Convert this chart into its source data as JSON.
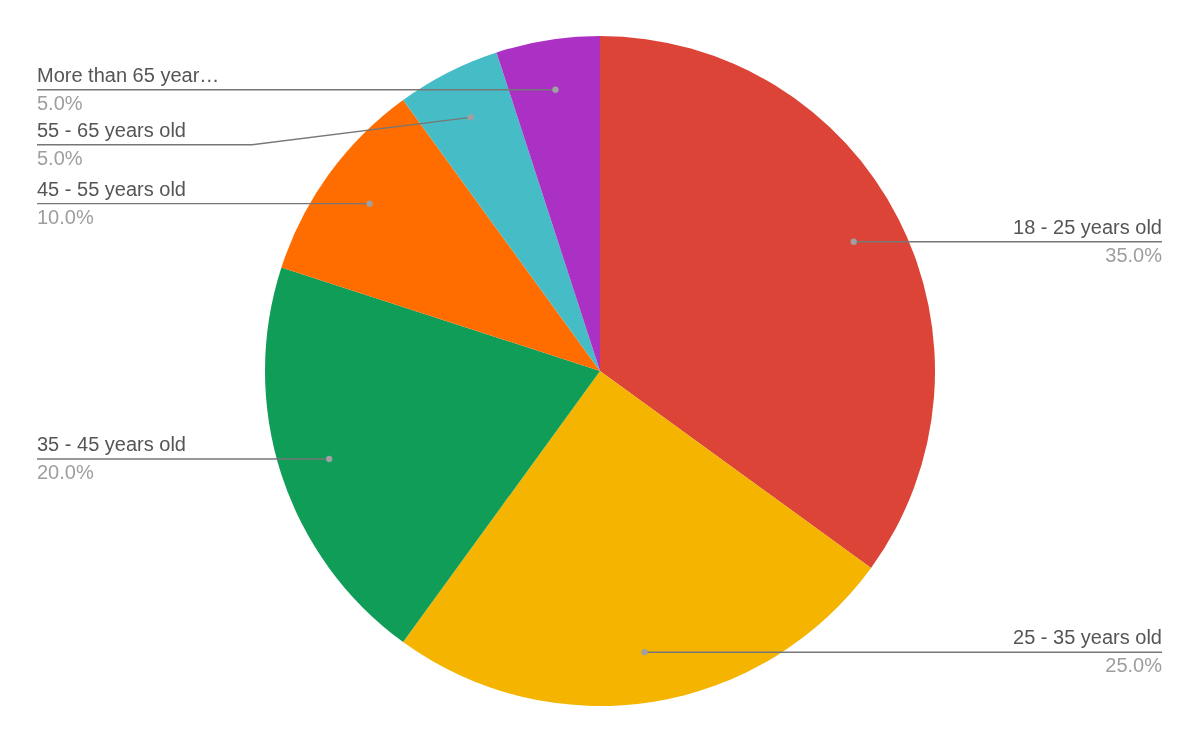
{
  "chart_data": {
    "type": "pie",
    "categories": [
      "18 - 25 years old",
      "25 - 35 years old",
      "35 - 45 years old",
      "45 - 55 years old",
      "55 - 65 years old",
      "More than 65 year…"
    ],
    "values": [
      35,
      25,
      20,
      10,
      5,
      5
    ],
    "value_labels": [
      "35.0%",
      "25.0%",
      "20.0%",
      "10.0%",
      "5.0%",
      "5.0%"
    ],
    "colors": [
      "#db4437",
      "#f4b400",
      "#0f9d58",
      "#ff6d01",
      "#46bdc6",
      "#ab30c4"
    ]
  }
}
